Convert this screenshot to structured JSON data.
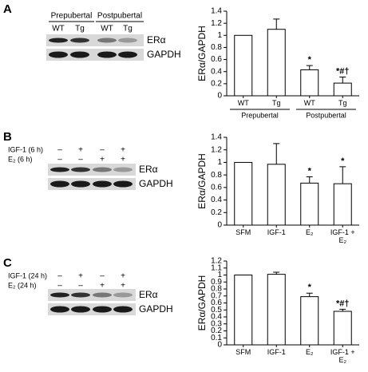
{
  "chart_data": [
    {
      "type": "bar",
      "y_label": "ERα/GAPDH",
      "categories": [
        "WT",
        "Tg",
        "WT",
        "Tg"
      ],
      "groups": [
        "Prepubertal",
        "Postpubertal"
      ],
      "values": [
        1.0,
        1.1,
        0.43,
        0.21
      ],
      "errors": [
        null,
        0.17,
        0.07,
        0.1
      ],
      "annotations": [
        null,
        null,
        "*",
        "*#†"
      ],
      "color": "#ffffff",
      "ylim": [
        0,
        1.4
      ],
      "yticks": [
        0,
        0.2,
        0.4,
        0.6,
        0.8,
        1,
        1.2,
        1.4
      ]
    },
    {
      "type": "bar",
      "y_label": "ERα/GAPDH",
      "categories": [
        "SFM",
        "IGF-1",
        "E₂",
        "IGF-1 + E₂"
      ],
      "values": [
        1.0,
        0.97,
        0.67,
        0.66
      ],
      "errors": [
        null,
        0.33,
        0.1,
        0.27
      ],
      "annotations": [
        null,
        null,
        "*",
        "*"
      ],
      "color": "#ffffff",
      "ylim": [
        0,
        1.4
      ],
      "yticks": [
        0,
        0.2,
        0.4,
        0.6,
        0.8,
        1,
        1.2,
        1.4
      ]
    },
    {
      "type": "bar",
      "y_label": "ERα/GAPDH",
      "categories": [
        "SFM",
        "IGF-1",
        "E₂",
        "IGF-1 + E₂"
      ],
      "values": [
        1.0,
        1.01,
        0.69,
        0.48
      ],
      "errors": [
        null,
        0.03,
        0.05,
        0.03
      ],
      "annotations": [
        null,
        null,
        "*",
        "*#†"
      ],
      "color": "#ffffff",
      "ylim": [
        0,
        1.2
      ],
      "yticks": [
        0,
        0.1,
        0.2,
        0.3,
        0.4,
        0.5,
        0.6,
        0.7,
        0.8,
        0.9,
        1,
        1.1,
        1.2
      ]
    }
  ],
  "blots": [
    {
      "letter": "A",
      "header": [
        "Prepubertal",
        "Postpubertal"
      ],
      "lanes": [
        "WT",
        "Tg",
        "WT",
        "Tg"
      ],
      "bands": [
        "ERα",
        "GAPDH"
      ]
    },
    {
      "letter": "B",
      "rows": [
        {
          "label": "IGF-1 (6 h)",
          "signs": [
            "–",
            "+",
            "–",
            "+"
          ]
        },
        {
          "label": "E₂ (6 h)",
          "signs": [
            "–",
            "–",
            "+",
            "+"
          ]
        }
      ],
      "bands": [
        "ERα",
        "GAPDH"
      ]
    },
    {
      "letter": "C",
      "rows": [
        {
          "label": "IGF-1 (24 h)",
          "signs": [
            "–",
            "+",
            "–",
            "+"
          ]
        },
        {
          "label": "E₂ (24 h)",
          "signs": [
            "–",
            "–",
            "+",
            "+"
          ]
        }
      ],
      "bands": [
        "ERα",
        "GAPDH"
      ]
    }
  ]
}
